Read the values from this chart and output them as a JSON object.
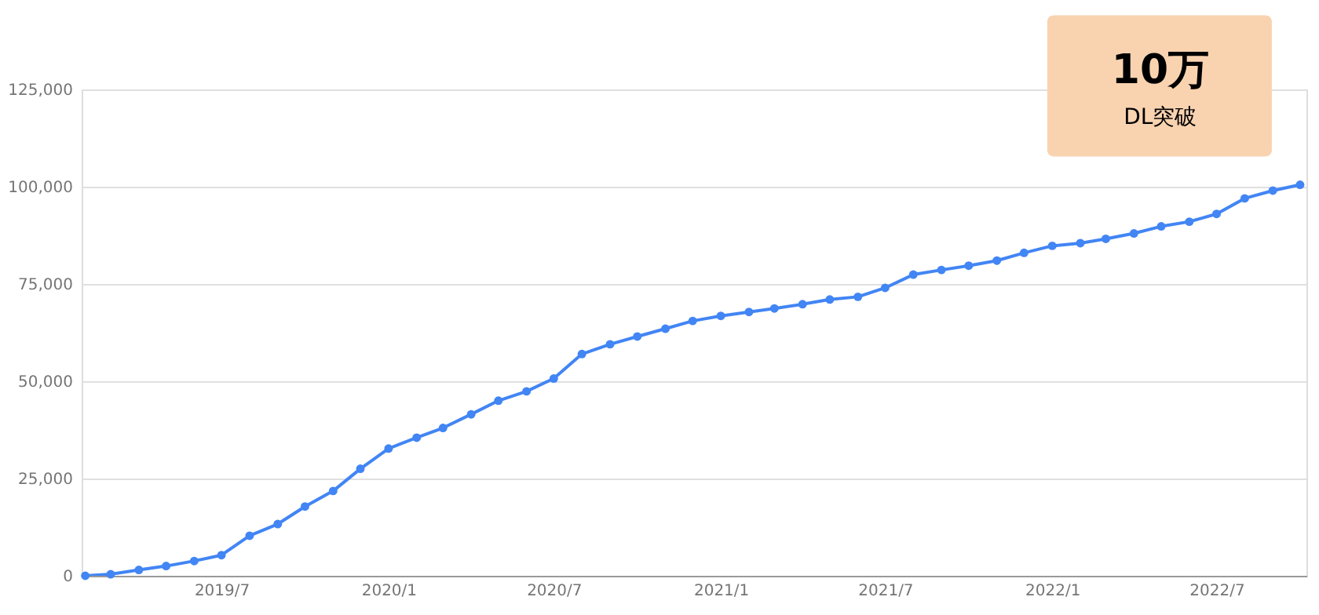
{
  "chart_data": {
    "type": "line",
    "x": [
      "2019-02-01",
      "2019-03-01",
      "2019-04-01",
      "2019-05-01",
      "2019-06-01",
      "2019-07-01",
      "2019-08-01",
      "2019-09-01",
      "2019-10-01",
      "2019-11-01",
      "2019-12-01",
      "2020-01-01",
      "2020-02-01",
      "2020-03-01",
      "2020-04-01",
      "2020-05-01",
      "2020-06-01",
      "2020-07-01",
      "2020-08-01",
      "2020-09-01",
      "2020-10-01",
      "2020-11-01",
      "2020-12-01",
      "2021-01-01",
      "2021-02-01",
      "2021-03-01",
      "2021-04-01",
      "2021-05-01",
      "2021-06-01",
      "2021-07-01",
      "2021-08-01",
      "2021-09-01",
      "2021-10-01",
      "2021-11-01",
      "2021-12-01",
      "2022-01-01",
      "2022-02-01",
      "2022-03-01",
      "2022-04-01",
      "2022-05-01",
      "2022-06-01",
      "2022-07-01",
      "2022-08-01",
      "2022-09-01",
      "2022-10-01"
    ],
    "series": [
      {
        "color": "#4285f4",
        "values": [
          0,
          400,
          1500,
          2500,
          3800,
          5300,
          10300,
          13300,
          17800,
          21800,
          27500,
          32700,
          35500,
          38000,
          41500,
          45000,
          47400,
          50700,
          57000,
          59500,
          61500,
          63500,
          65500,
          66800,
          67800,
          68700,
          69800,
          71000,
          71700,
          74000,
          77400,
          78600,
          79700,
          81000,
          83000,
          84800,
          85500,
          86600,
          88000,
          89800,
          91000,
          93000,
          97000,
          99000,
          100500
        ]
      }
    ],
    "xlim": [
      "2019-01-28",
      "2022-10-08"
    ],
    "xticks": [
      {
        "value": "2019-07-01",
        "label": "2019/7"
      },
      {
        "value": "2020-01-01",
        "label": "2020/1"
      },
      {
        "value": "2020-07-01",
        "label": "2020/7"
      },
      {
        "value": "2021-01-01",
        "label": "2021/1"
      },
      {
        "value": "2021-07-01",
        "label": "2021/7"
      },
      {
        "value": "2022-01-01",
        "label": "2022/1"
      },
      {
        "value": "2022-07-01",
        "label": "2022/7"
      }
    ],
    "ylim": [
      0,
      125000
    ],
    "yticks": [
      0,
      {
        "value": 25000,
        "label": "25,000"
      },
      {
        "value": 50000,
        "label": "50,000"
      },
      {
        "value": 75000,
        "label": "75,000"
      },
      {
        "value": 100000,
        "label": "100,000"
      },
      {
        "value": 125000,
        "label": "125,000"
      }
    ],
    "grid": "y",
    "marker": "circle",
    "line_style": "solid",
    "annotations": [
      {
        "text": "10万 DL突破",
        "x": "2022-10-01",
        "y": 100500
      }
    ]
  }
}
